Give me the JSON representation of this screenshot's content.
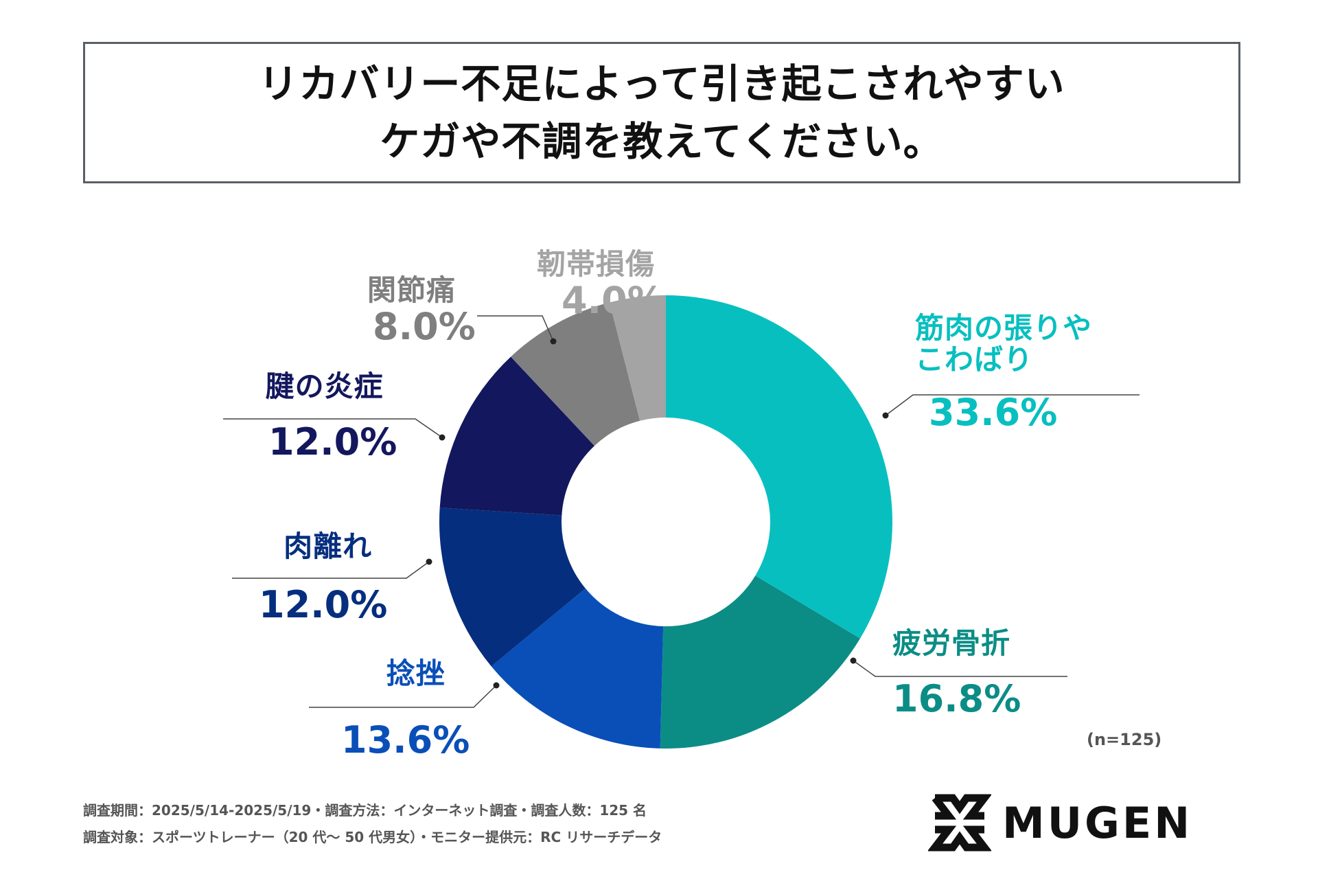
{
  "title": {
    "line1": "リカバリー不足によって引き起こされやすい",
    "line2": "ケガや不調を教えてください。"
  },
  "chart_data": {
    "type": "pie",
    "style": "donut",
    "title": "リカバリー不足によって引き起こされやすいケガや不調を教えてください。",
    "categories": [
      "筋肉の張りやこわばり",
      "疲労骨折",
      "捻挫",
      "肉離れ",
      "腱の炎症",
      "関節痛",
      "靭帯損傷"
    ],
    "values": [
      33.6,
      16.8,
      13.6,
      12.0,
      12.0,
      8.0,
      4.0
    ],
    "value_labels": [
      "33.6%",
      "16.8%",
      "13.6%",
      "12.0%",
      "12.0%",
      "8.0%",
      "4.0%"
    ],
    "label_lines": [
      [
        "筋肉の張りや",
        "こわばり"
      ],
      [
        "疲労骨折"
      ],
      [
        "捻挫"
      ],
      [
        "肉離れ"
      ],
      [
        "腱の炎症"
      ],
      [
        "関節痛"
      ],
      [
        "靭帯損傷"
      ]
    ],
    "colors": [
      "#08bfc0",
      "#0b8d86",
      "#0a4fb8",
      "#062e7e",
      "#13175d",
      "#7f7f7f",
      "#a4a4a4"
    ],
    "start": "top, clockwise"
  },
  "sample_note": "(n=125)",
  "footer": {
    "line1": "調査期間：2025/5/14-2025/5/19・調査方法：インターネット調査・調査人数：125 名",
    "line2": "調査対象：スポーツトレーナー（20 代～ 50 代男女）・モニター提供元：RC リサーチデータ"
  },
  "logo": {
    "text": "MUGEN",
    "icon": "mugen-x-logo-icon",
    "color": "#111111"
  }
}
